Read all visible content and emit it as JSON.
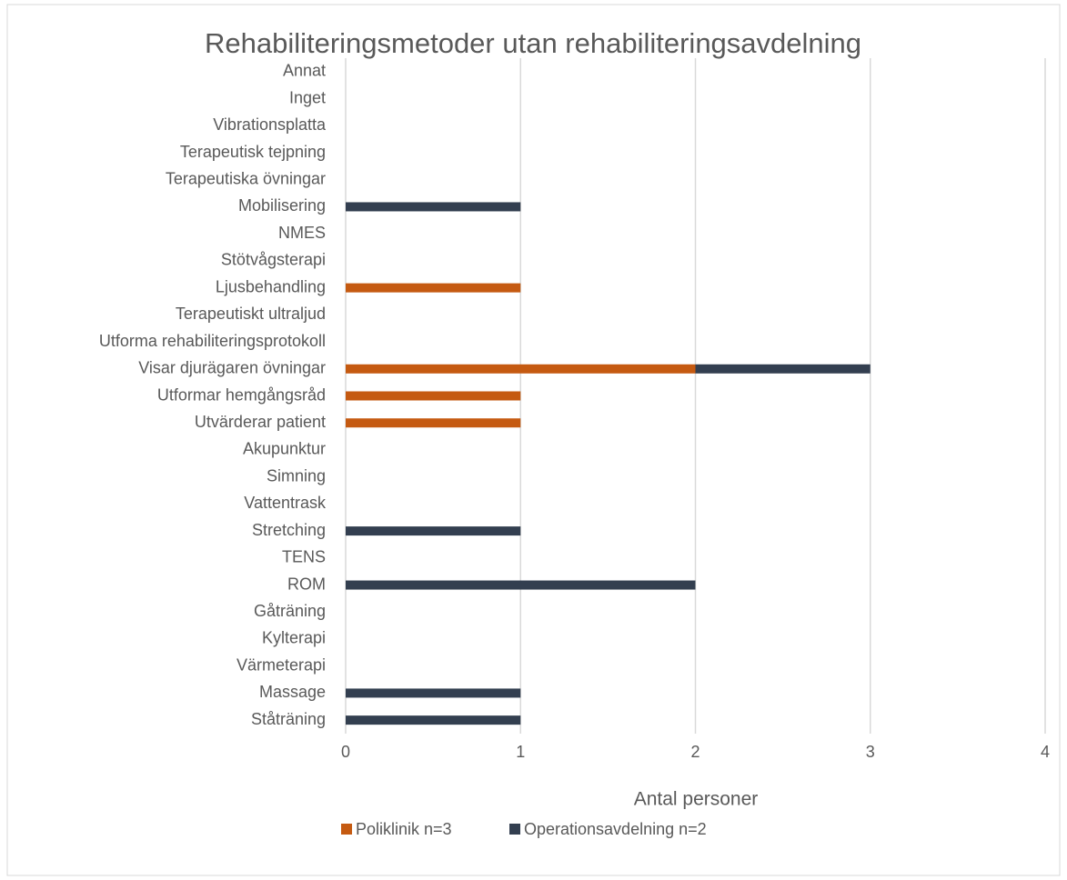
{
  "chart_data": {
    "type": "stacked_barh",
    "title": "Rehabiliteringsmetoder  utan rehabiliteringsavdelning",
    "x_label": "Antal personer",
    "categories": [
      "Annat",
      "Inget",
      "Vibrationsplatta",
      "Terapeutisk tejpning",
      "Terapeutiska övningar",
      "Mobilisering",
      "NMES",
      "Stötvågsterapi",
      "Ljusbehandling",
      "Terapeutiskt ultraljud",
      "Utforma rehabiliteringsprotokoll",
      "Visar djurägaren övningar",
      "Utformar hemgångsråd",
      "Utvärderar patient",
      "Akupunktur",
      "Simning",
      "Vattentrask",
      "Stretching",
      "TENS",
      "ROM",
      "Gåträning",
      "Kylterapi",
      "Värmeterapi",
      "Massage",
      "Ståträning"
    ],
    "series": [
      {
        "name": "Poliklinik n=3",
        "color": "#c55a11",
        "values": [
          0,
          0,
          0,
          0,
          0,
          0,
          0,
          0,
          1,
          0,
          0,
          2,
          1,
          1,
          0,
          0,
          0,
          0,
          0,
          0,
          0,
          0,
          0,
          0,
          0
        ]
      },
      {
        "name": "Operationsavdelning n=2",
        "color": "#333f50",
        "values": [
          0,
          0,
          0,
          0,
          0,
          1,
          0,
          0,
          0,
          0,
          0,
          1,
          0,
          0,
          0,
          0,
          0,
          1,
          0,
          2,
          0,
          0,
          0,
          1,
          1
        ]
      }
    ],
    "xlim": [
      0,
      4
    ],
    "xticks": [
      0,
      1,
      2,
      3,
      4
    ],
    "grid": true,
    "legend": "bottom"
  }
}
